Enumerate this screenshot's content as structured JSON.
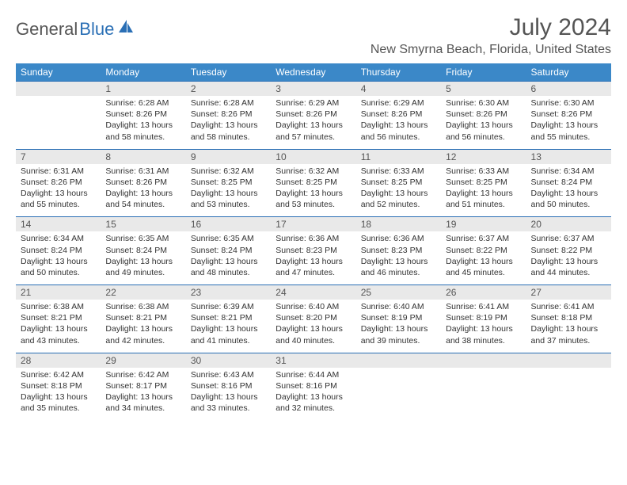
{
  "logo": {
    "text_gray": "General",
    "text_blue": "Blue"
  },
  "title": "July 2024",
  "location": "New Smyrna Beach, Florida, United States",
  "header_bg": "#3b88c8",
  "daynum_bg": "#e9e9e9",
  "border_color": "#2a6fb5",
  "weekdays": [
    "Sunday",
    "Monday",
    "Tuesday",
    "Wednesday",
    "Thursday",
    "Friday",
    "Saturday"
  ],
  "weeks": [
    {
      "nums": [
        "",
        "1",
        "2",
        "3",
        "4",
        "5",
        "6"
      ],
      "cells": [
        null,
        {
          "sunrise": "Sunrise: 6:28 AM",
          "sunset": "Sunset: 8:26 PM",
          "day": "Daylight: 13 hours and 58 minutes."
        },
        {
          "sunrise": "Sunrise: 6:28 AM",
          "sunset": "Sunset: 8:26 PM",
          "day": "Daylight: 13 hours and 58 minutes."
        },
        {
          "sunrise": "Sunrise: 6:29 AM",
          "sunset": "Sunset: 8:26 PM",
          "day": "Daylight: 13 hours and 57 minutes."
        },
        {
          "sunrise": "Sunrise: 6:29 AM",
          "sunset": "Sunset: 8:26 PM",
          "day": "Daylight: 13 hours and 56 minutes."
        },
        {
          "sunrise": "Sunrise: 6:30 AM",
          "sunset": "Sunset: 8:26 PM",
          "day": "Daylight: 13 hours and 56 minutes."
        },
        {
          "sunrise": "Sunrise: 6:30 AM",
          "sunset": "Sunset: 8:26 PM",
          "day": "Daylight: 13 hours and 55 minutes."
        }
      ]
    },
    {
      "nums": [
        "7",
        "8",
        "9",
        "10",
        "11",
        "12",
        "13"
      ],
      "cells": [
        {
          "sunrise": "Sunrise: 6:31 AM",
          "sunset": "Sunset: 8:26 PM",
          "day": "Daylight: 13 hours and 55 minutes."
        },
        {
          "sunrise": "Sunrise: 6:31 AM",
          "sunset": "Sunset: 8:26 PM",
          "day": "Daylight: 13 hours and 54 minutes."
        },
        {
          "sunrise": "Sunrise: 6:32 AM",
          "sunset": "Sunset: 8:25 PM",
          "day": "Daylight: 13 hours and 53 minutes."
        },
        {
          "sunrise": "Sunrise: 6:32 AM",
          "sunset": "Sunset: 8:25 PM",
          "day": "Daylight: 13 hours and 53 minutes."
        },
        {
          "sunrise": "Sunrise: 6:33 AM",
          "sunset": "Sunset: 8:25 PM",
          "day": "Daylight: 13 hours and 52 minutes."
        },
        {
          "sunrise": "Sunrise: 6:33 AM",
          "sunset": "Sunset: 8:25 PM",
          "day": "Daylight: 13 hours and 51 minutes."
        },
        {
          "sunrise": "Sunrise: 6:34 AM",
          "sunset": "Sunset: 8:24 PM",
          "day": "Daylight: 13 hours and 50 minutes."
        }
      ]
    },
    {
      "nums": [
        "14",
        "15",
        "16",
        "17",
        "18",
        "19",
        "20"
      ],
      "cells": [
        {
          "sunrise": "Sunrise: 6:34 AM",
          "sunset": "Sunset: 8:24 PM",
          "day": "Daylight: 13 hours and 50 minutes."
        },
        {
          "sunrise": "Sunrise: 6:35 AM",
          "sunset": "Sunset: 8:24 PM",
          "day": "Daylight: 13 hours and 49 minutes."
        },
        {
          "sunrise": "Sunrise: 6:35 AM",
          "sunset": "Sunset: 8:24 PM",
          "day": "Daylight: 13 hours and 48 minutes."
        },
        {
          "sunrise": "Sunrise: 6:36 AM",
          "sunset": "Sunset: 8:23 PM",
          "day": "Daylight: 13 hours and 47 minutes."
        },
        {
          "sunrise": "Sunrise: 6:36 AM",
          "sunset": "Sunset: 8:23 PM",
          "day": "Daylight: 13 hours and 46 minutes."
        },
        {
          "sunrise": "Sunrise: 6:37 AM",
          "sunset": "Sunset: 8:22 PM",
          "day": "Daylight: 13 hours and 45 minutes."
        },
        {
          "sunrise": "Sunrise: 6:37 AM",
          "sunset": "Sunset: 8:22 PM",
          "day": "Daylight: 13 hours and 44 minutes."
        }
      ]
    },
    {
      "nums": [
        "21",
        "22",
        "23",
        "24",
        "25",
        "26",
        "27"
      ],
      "cells": [
        {
          "sunrise": "Sunrise: 6:38 AM",
          "sunset": "Sunset: 8:21 PM",
          "day": "Daylight: 13 hours and 43 minutes."
        },
        {
          "sunrise": "Sunrise: 6:38 AM",
          "sunset": "Sunset: 8:21 PM",
          "day": "Daylight: 13 hours and 42 minutes."
        },
        {
          "sunrise": "Sunrise: 6:39 AM",
          "sunset": "Sunset: 8:21 PM",
          "day": "Daylight: 13 hours and 41 minutes."
        },
        {
          "sunrise": "Sunrise: 6:40 AM",
          "sunset": "Sunset: 8:20 PM",
          "day": "Daylight: 13 hours and 40 minutes."
        },
        {
          "sunrise": "Sunrise: 6:40 AM",
          "sunset": "Sunset: 8:19 PM",
          "day": "Daylight: 13 hours and 39 minutes."
        },
        {
          "sunrise": "Sunrise: 6:41 AM",
          "sunset": "Sunset: 8:19 PM",
          "day": "Daylight: 13 hours and 38 minutes."
        },
        {
          "sunrise": "Sunrise: 6:41 AM",
          "sunset": "Sunset: 8:18 PM",
          "day": "Daylight: 13 hours and 37 minutes."
        }
      ]
    },
    {
      "nums": [
        "28",
        "29",
        "30",
        "31",
        "",
        "",
        ""
      ],
      "cells": [
        {
          "sunrise": "Sunrise: 6:42 AM",
          "sunset": "Sunset: 8:18 PM",
          "day": "Daylight: 13 hours and 35 minutes."
        },
        {
          "sunrise": "Sunrise: 6:42 AM",
          "sunset": "Sunset: 8:17 PM",
          "day": "Daylight: 13 hours and 34 minutes."
        },
        {
          "sunrise": "Sunrise: 6:43 AM",
          "sunset": "Sunset: 8:16 PM",
          "day": "Daylight: 13 hours and 33 minutes."
        },
        {
          "sunrise": "Sunrise: 6:44 AM",
          "sunset": "Sunset: 8:16 PM",
          "day": "Daylight: 13 hours and 32 minutes."
        },
        null,
        null,
        null
      ]
    }
  ]
}
